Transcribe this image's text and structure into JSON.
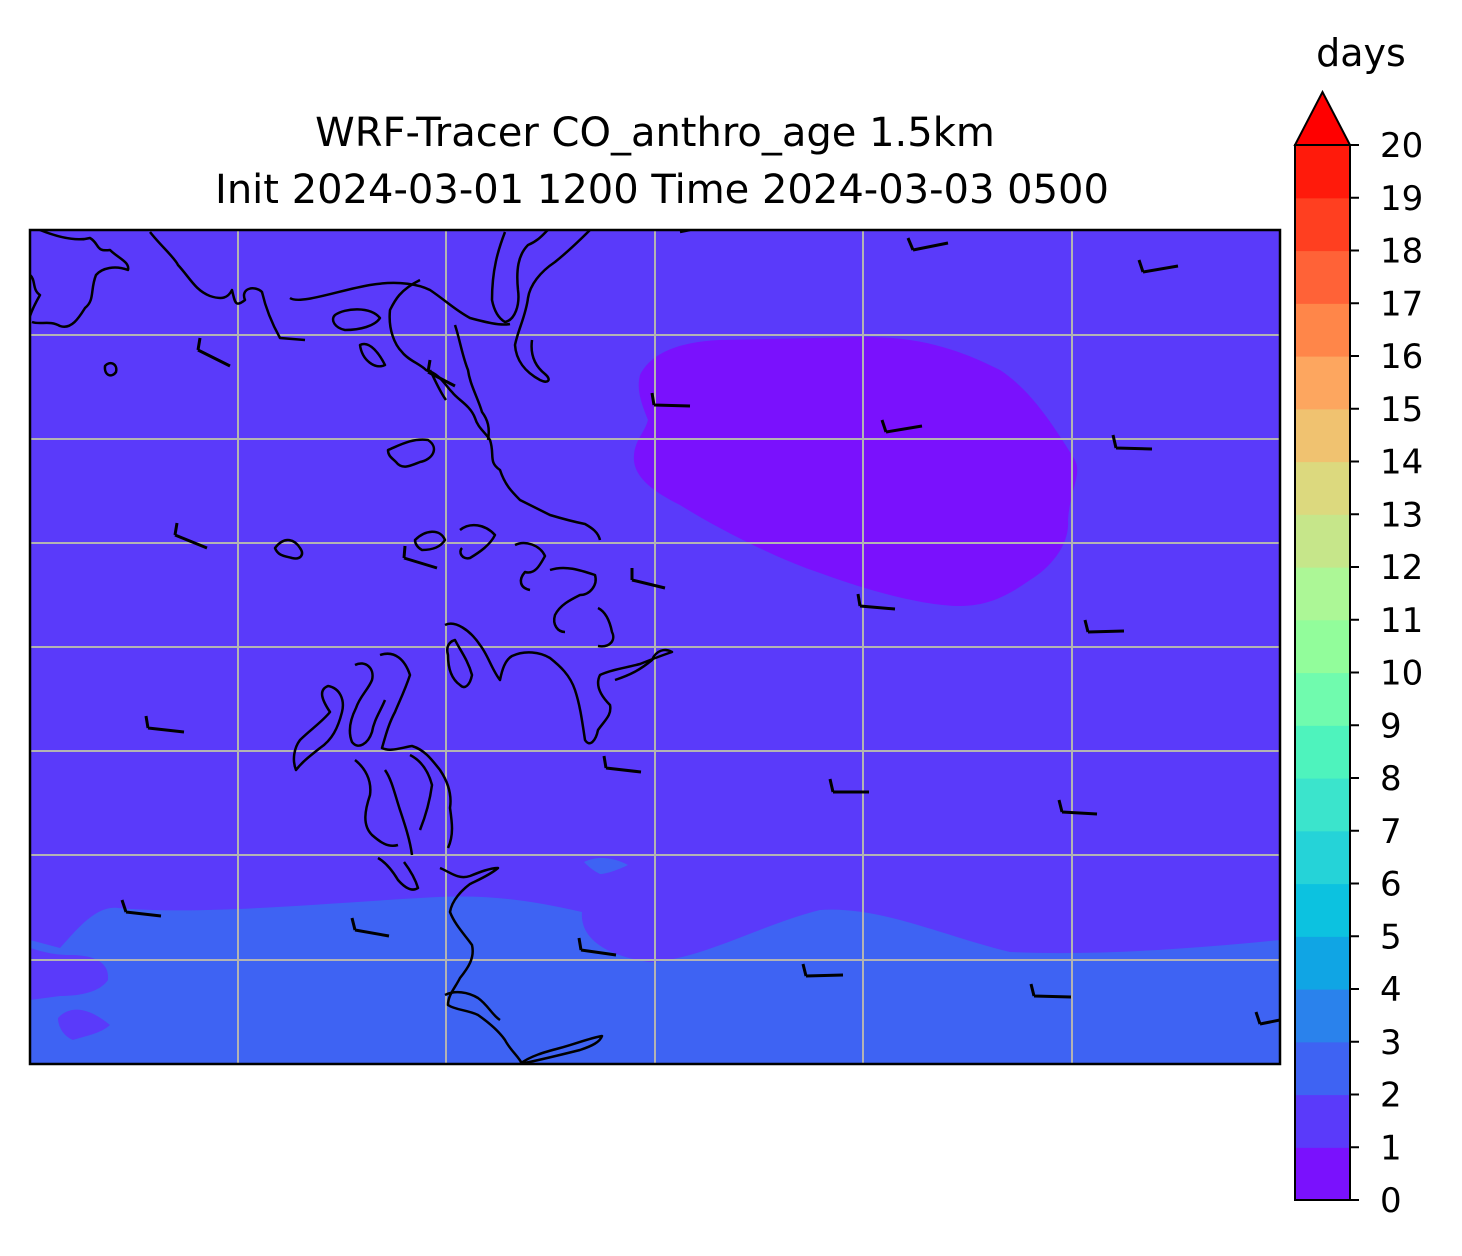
{
  "title": {
    "line1": "WRF-Tracer CO_anthro_age 1.5km",
    "line2": "Init 2024-03-01 1200 Time 2024-03-03 0500"
  },
  "colorbar": {
    "unit_label": "days",
    "extend": "max",
    "levels": [
      0,
      1,
      2,
      3,
      4,
      5,
      6,
      7,
      8,
      9,
      10,
      11,
      12,
      13,
      14,
      15,
      16,
      17,
      18,
      19,
      20
    ],
    "tick_labels": [
      "0",
      "1",
      "2",
      "3",
      "4",
      "5",
      "6",
      "7",
      "8",
      "9",
      "10",
      "11",
      "12",
      "13",
      "14",
      "15",
      "16",
      "17",
      "18",
      "19",
      "20"
    ],
    "colormap": "rainbow",
    "colors": [
      "#7a11fd",
      "#5a3afa",
      "#3e63f3",
      "#2a82ec",
      "#10a5e4",
      "#0cc2e0",
      "#25d3d8",
      "#3be4cc",
      "#4ef3bd",
      "#70fbae",
      "#92fd9b",
      "#acf796",
      "#c6e68a",
      "#dcd97e",
      "#f0c270",
      "#fda65f",
      "#ff8649",
      "#ff6237",
      "#ff3f20",
      "#ff1a0b"
    ],
    "extend_color": "#ff0000"
  },
  "map": {
    "field_colors": {
      "age_0_1": "#7a11fd",
      "age_1_2": "#5a3afa",
      "age_2_3": "#3e63f3"
    },
    "coastline_color": "#000000",
    "gridline_color": "#b3b3b3",
    "wind_barb_color": "#000000"
  }
}
